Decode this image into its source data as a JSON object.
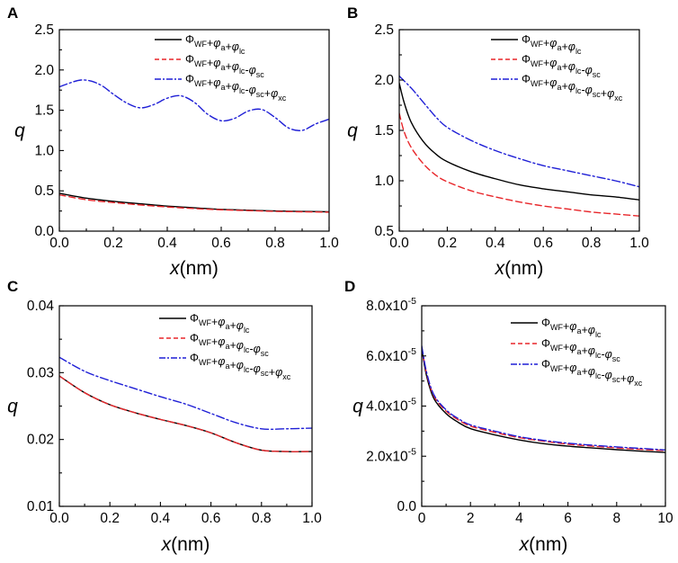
{
  "chart_data": [
    {
      "panel": "A",
      "type": "line",
      "xlabel_var": "x",
      "xlabel_unit": "(nm)",
      "ylabel": "q",
      "xlim": [
        0,
        1.0
      ],
      "ylim": [
        0,
        2.5
      ],
      "xticks": [
        0,
        0.2,
        0.4,
        0.6,
        0.8,
        1.0
      ],
      "yticks": [
        0,
        0.5,
        1.0,
        1.5,
        2.0,
        2.5
      ],
      "xtick_labels": [
        "0.0",
        "0.2",
        "0.4",
        "0.6",
        "0.8",
        "1.0"
      ],
      "ytick_labels": [
        "0.0",
        "0.5",
        "1.0",
        "1.5",
        "2.0",
        "2.5"
      ],
      "legend": "top-right",
      "series": [
        {
          "name": "ΦWF+φa+φlc",
          "color": "#000000",
          "dash": "solid",
          "x": [
            0,
            0.1,
            0.2,
            0.3,
            0.4,
            0.5,
            0.6,
            0.7,
            0.8,
            0.9,
            1.0
          ],
          "y": [
            0.47,
            0.41,
            0.37,
            0.34,
            0.31,
            0.29,
            0.27,
            0.26,
            0.25,
            0.245,
            0.24
          ]
        },
        {
          "name": "ΦWF+φa+φlc-φsc",
          "color": "#e8262a",
          "dash": "dashed",
          "x": [
            0,
            0.1,
            0.2,
            0.3,
            0.4,
            0.5,
            0.6,
            0.7,
            0.8,
            0.9,
            1.0
          ],
          "y": [
            0.45,
            0.39,
            0.355,
            0.325,
            0.3,
            0.28,
            0.265,
            0.255,
            0.245,
            0.24,
            0.235
          ]
        },
        {
          "name": "ΦWF+φa+φlc-φsc+φxc",
          "color": "#1f1fd6",
          "dash": "dashdot",
          "x": [
            0,
            0.04,
            0.08,
            0.12,
            0.16,
            0.2,
            0.25,
            0.3,
            0.35,
            0.4,
            0.45,
            0.5,
            0.55,
            0.6,
            0.65,
            0.7,
            0.75,
            0.8,
            0.85,
            0.9,
            0.95,
            1.0
          ],
          "y": [
            1.79,
            1.84,
            1.875,
            1.86,
            1.8,
            1.7,
            1.59,
            1.53,
            1.57,
            1.65,
            1.68,
            1.6,
            1.45,
            1.37,
            1.4,
            1.49,
            1.51,
            1.41,
            1.28,
            1.25,
            1.33,
            1.39
          ]
        }
      ]
    },
    {
      "panel": "B",
      "type": "line",
      "xlabel_var": "x",
      "xlabel_unit": "(nm)",
      "ylabel": "q",
      "xlim": [
        0,
        1.0
      ],
      "ylim": [
        0.5,
        2.5
      ],
      "xticks": [
        0,
        0.2,
        0.4,
        0.6,
        0.8,
        1.0
      ],
      "yticks": [
        0.5,
        1.0,
        1.5,
        2.0,
        2.5
      ],
      "xtick_labels": [
        "0.0",
        "0.2",
        "0.4",
        "0.6",
        "0.8",
        "1.0"
      ],
      "ytick_labels": [
        "0.5",
        "1.0",
        "1.5",
        "2.0",
        "2.5"
      ],
      "legend": "top-right",
      "series": [
        {
          "name": "ΦWF+φa+φlc",
          "color": "#000000",
          "dash": "solid",
          "x": [
            0,
            0.02,
            0.05,
            0.1,
            0.15,
            0.2,
            0.3,
            0.4,
            0.5,
            0.6,
            0.7,
            0.8,
            0.9,
            1.0
          ],
          "y": [
            1.97,
            1.78,
            1.58,
            1.39,
            1.27,
            1.19,
            1.09,
            1.02,
            0.96,
            0.92,
            0.89,
            0.86,
            0.84,
            0.81
          ]
        },
        {
          "name": "ΦWF+φa+φlc-φsc",
          "color": "#e8262a",
          "dash": "dashed",
          "x": [
            0,
            0.02,
            0.05,
            0.1,
            0.15,
            0.2,
            0.3,
            0.4,
            0.5,
            0.6,
            0.7,
            0.8,
            0.9,
            1.0
          ],
          "y": [
            1.67,
            1.49,
            1.33,
            1.17,
            1.06,
            0.99,
            0.9,
            0.84,
            0.79,
            0.75,
            0.72,
            0.69,
            0.67,
            0.65
          ]
        },
        {
          "name": "ΦWF+φa+φlc-φsc+φxc",
          "color": "#1f1fd6",
          "dash": "dashdot",
          "x": [
            0,
            0.05,
            0.1,
            0.15,
            0.2,
            0.3,
            0.4,
            0.5,
            0.6,
            0.7,
            0.8,
            0.9,
            1.0
          ],
          "y": [
            2.04,
            1.92,
            1.78,
            1.64,
            1.53,
            1.4,
            1.3,
            1.22,
            1.15,
            1.1,
            1.05,
            1.0,
            0.94
          ]
        }
      ]
    },
    {
      "panel": "C",
      "type": "line",
      "xlabel_var": "x",
      "xlabel_unit": "(nm)",
      "ylabel": "q",
      "xlim": [
        0,
        1.0
      ],
      "ylim": [
        0.01,
        0.04
      ],
      "xticks": [
        0,
        0.2,
        0.4,
        0.6,
        0.8,
        1.0
      ],
      "yticks": [
        0.01,
        0.02,
        0.03,
        0.04
      ],
      "xtick_labels": [
        "0.0",
        "0.2",
        "0.4",
        "0.6",
        "0.8",
        "1.0"
      ],
      "ytick_labels": [
        "0.01",
        "0.02",
        "0.03",
        "0.04"
      ],
      "legend": "top-right",
      "series": [
        {
          "name": "ΦWF+φa+φlc",
          "color": "#000000",
          "dash": "solid",
          "x": [
            0,
            0.1,
            0.2,
            0.3,
            0.4,
            0.5,
            0.6,
            0.7,
            0.8,
            0.9,
            1.0
          ],
          "y": [
            0.0295,
            0.027,
            0.0252,
            0.024,
            0.023,
            0.0221,
            0.021,
            0.0195,
            0.0184,
            0.0182,
            0.0182
          ]
        },
        {
          "name": "ΦWF+φa+φlc-φsc",
          "color": "#e8262a",
          "dash": "dashed",
          "x": [
            0,
            0.1,
            0.2,
            0.3,
            0.4,
            0.5,
            0.6,
            0.7,
            0.8,
            0.9,
            1.0
          ],
          "y": [
            0.0295,
            0.027,
            0.0252,
            0.024,
            0.023,
            0.0221,
            0.021,
            0.0195,
            0.0184,
            0.0182,
            0.0182
          ]
        },
        {
          "name": "ΦWF+φa+φlc-φsc+φxc",
          "color": "#1f1fd6",
          "dash": "dashdot",
          "x": [
            0,
            0.1,
            0.2,
            0.3,
            0.4,
            0.5,
            0.6,
            0.7,
            0.8,
            0.9,
            1.0
          ],
          "y": [
            0.0323,
            0.0302,
            0.0288,
            0.0276,
            0.0264,
            0.0253,
            0.0239,
            0.0225,
            0.0216,
            0.0216,
            0.0217
          ]
        }
      ]
    },
    {
      "panel": "D",
      "type": "line",
      "xlabel_var": "x",
      "xlabel_unit": "(nm)",
      "ylabel": "q",
      "xlim": [
        0,
        10
      ],
      "ylim": [
        0,
        8e-05
      ],
      "xticks": [
        0,
        2,
        4,
        6,
        8,
        10
      ],
      "yticks": [
        0,
        2e-05,
        4e-05,
        6e-05,
        8e-05
      ],
      "xtick_labels": [
        "0",
        "2",
        "4",
        "6",
        "8",
        "10"
      ],
      "ytick_labels": [
        "0.0",
        "2.0x10-5",
        "4.0x10-5",
        "6.0x10-5",
        "8.0x10-5"
      ],
      "legend": "top-right",
      "series": [
        {
          "name": "ΦWF+φa+φlc",
          "color": "#000000",
          "dash": "solid",
          "x": [
            0,
            0.2,
            0.5,
            1,
            1.5,
            2,
            3,
            4,
            5,
            6,
            7,
            8,
            9,
            10
          ],
          "y": [
            6.3e-05,
            5.2e-05,
            4.3e-05,
            3.7e-05,
            3.35e-05,
            3.1e-05,
            2.85e-05,
            2.65e-05,
            2.5e-05,
            2.4e-05,
            2.33e-05,
            2.26e-05,
            2.2e-05,
            2.15e-05
          ]
        },
        {
          "name": "ΦWF+φa+φlc-φsc",
          "color": "#e8262a",
          "dash": "dashed",
          "x": [
            0,
            0.2,
            0.5,
            1,
            1.5,
            2,
            3,
            4,
            5,
            6,
            7,
            8,
            9,
            10
          ],
          "y": [
            6.35e-05,
            5.3e-05,
            4.4e-05,
            3.8e-05,
            3.45e-05,
            3.2e-05,
            2.95e-05,
            2.74e-05,
            2.6e-05,
            2.48e-05,
            2.4e-05,
            2.33e-05,
            2.27e-05,
            2.22e-05
          ]
        },
        {
          "name": "ΦWF+φa+φlc-φsc+φxc",
          "color": "#1f1fd6",
          "dash": "dashdot",
          "x": [
            0,
            0.2,
            0.5,
            1,
            1.5,
            2,
            3,
            4,
            5,
            6,
            7,
            8,
            9,
            10
          ],
          "y": [
            6.4e-05,
            5.35e-05,
            4.45e-05,
            3.85e-05,
            3.5e-05,
            3.25e-05,
            3e-05,
            2.78e-05,
            2.63e-05,
            2.52e-05,
            2.44e-05,
            2.37e-05,
            2.31e-05,
            2.25e-05
          ]
        }
      ]
    }
  ]
}
